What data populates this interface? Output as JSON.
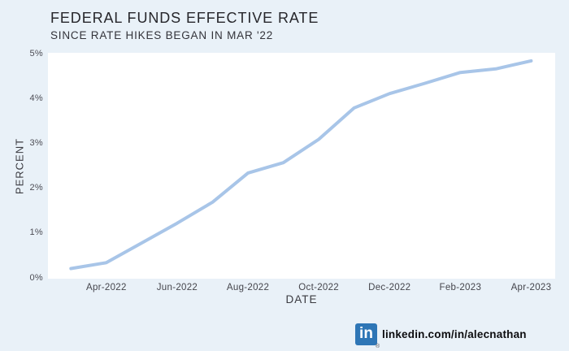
{
  "page": {
    "background": "#e9f1f8",
    "plot_background": "#ffffff"
  },
  "header": {
    "title": "FEDERAL FUNDS EFFECTIVE RATE",
    "subtitle": "SINCE RATE HIKES BEGAN IN MAR '22"
  },
  "chart_data": {
    "type": "line",
    "title": "FEDERAL FUNDS EFFECTIVE RATE",
    "subtitle": "SINCE RATE HIKES BEGAN IN MAR '22",
    "xlabel": "DATE",
    "ylabel": "PERCENT",
    "x": [
      "Mar-2022",
      "Apr-2022",
      "May-2022",
      "Jun-2022",
      "Jul-2022",
      "Aug-2022",
      "Sep-2022",
      "Oct-2022",
      "Nov-2022",
      "Dec-2022",
      "Jan-2023",
      "Feb-2023",
      "Mar-2023",
      "Apr-2023"
    ],
    "values": [
      0.2,
      0.33,
      0.77,
      1.21,
      1.68,
      2.33,
      2.56,
      3.08,
      3.78,
      4.1,
      4.33,
      4.57,
      4.65,
      4.83
    ],
    "series_name": "Federal Funds Effective Rate",
    "ylim": [
      0,
      5
    ],
    "grid": false,
    "legend": "none",
    "line_color": "#a8c5e8",
    "line_width": 4,
    "x_ticks": [
      {
        "index": 1,
        "label": "Apr-2022"
      },
      {
        "index": 3,
        "label": "Jun-2022"
      },
      {
        "index": 5,
        "label": "Aug-2022"
      },
      {
        "index": 7,
        "label": "Oct-2022"
      },
      {
        "index": 9,
        "label": "Dec-2022"
      },
      {
        "index": 11,
        "label": "Feb-2023"
      },
      {
        "index": 13,
        "label": "Apr-2023"
      }
    ],
    "y_ticks": [
      {
        "value": 0,
        "label": "0%"
      },
      {
        "value": 1,
        "label": "1%"
      },
      {
        "value": 2,
        "label": "2%"
      },
      {
        "value": 3,
        "label": "3%"
      },
      {
        "value": 4,
        "label": "4%"
      },
      {
        "value": 5,
        "label": "5%"
      }
    ]
  },
  "footer": {
    "linkedin_icon": "in",
    "registered_mark": "®",
    "url": "linkedin.com/in/alecnathan",
    "linkedin_blue": "#2e76b6"
  }
}
